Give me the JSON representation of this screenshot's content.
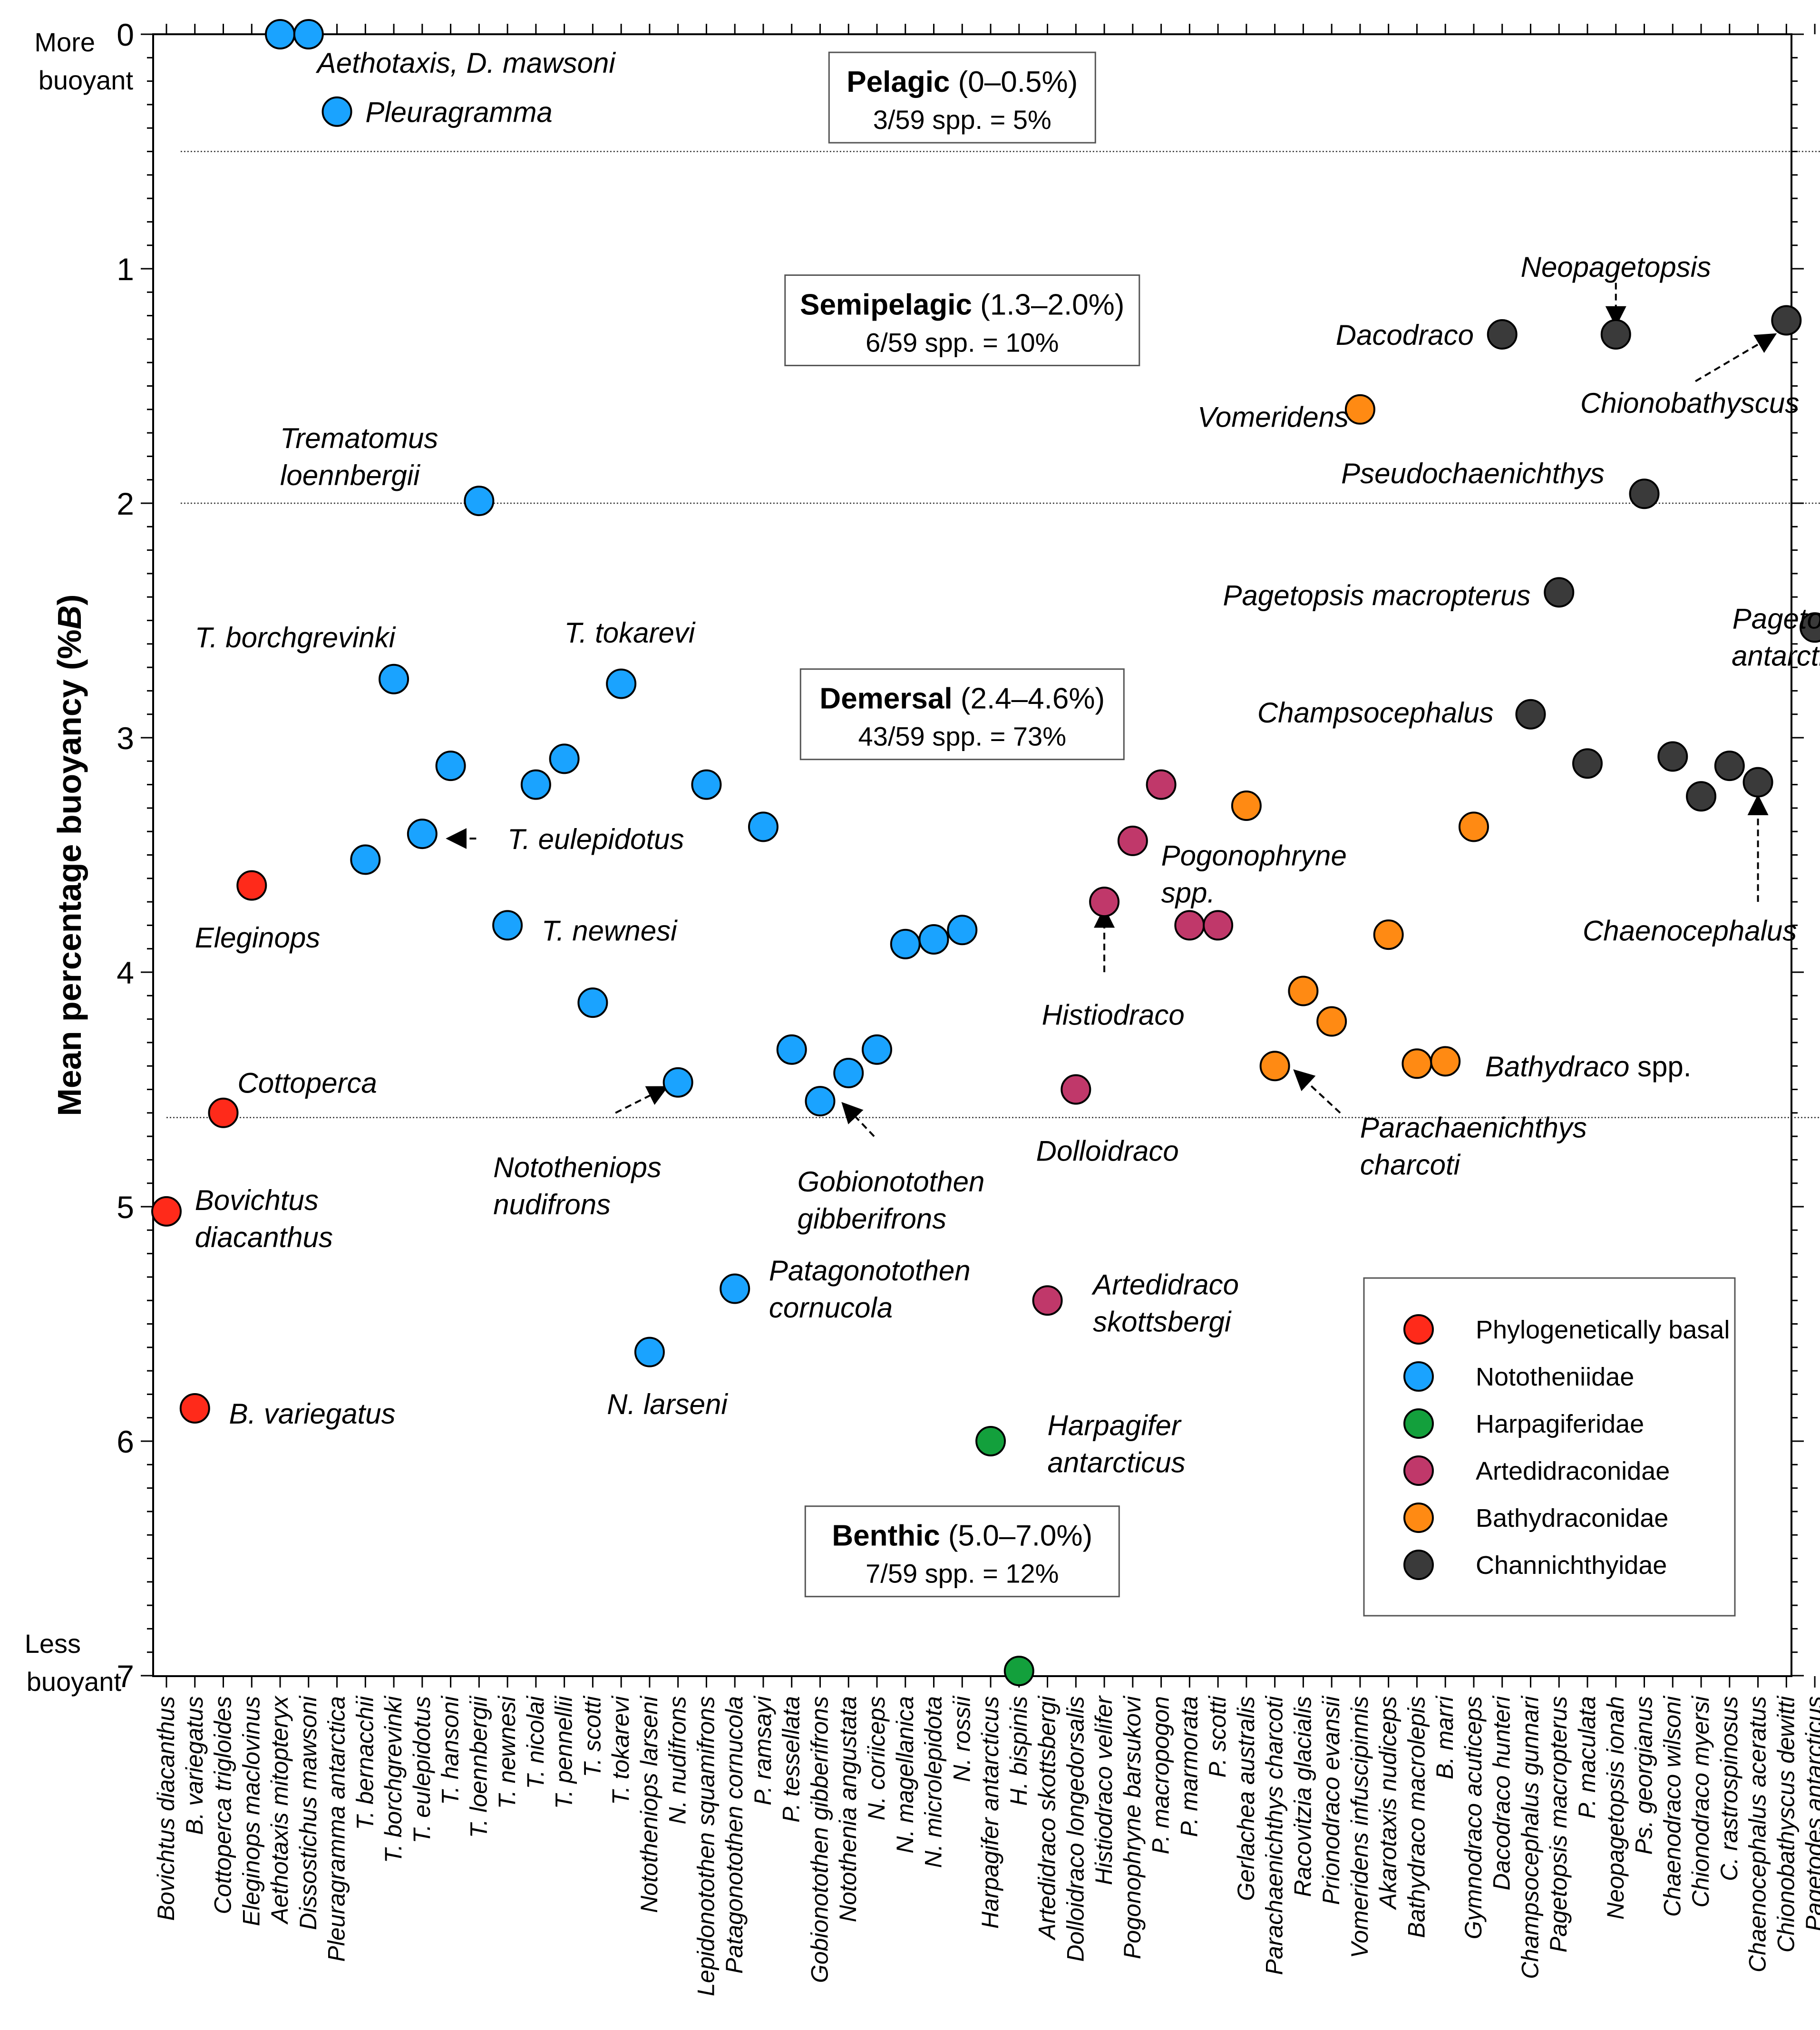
{
  "chart_data": {
    "type": "scatter",
    "title": "",
    "ylabel_main": "Mean percentage buoyancy (%",
    "ylabel_symbol": "B",
    "ylabel_end": ")",
    "y_top_label": [
      "More",
      "buoyant"
    ],
    "y_bottom_label": [
      "Less",
      "buoyant"
    ],
    "ylim": [
      0,
      7
    ],
    "y_inverted": true,
    "yticks": [
      0,
      1,
      2,
      3,
      4,
      5,
      6,
      7
    ],
    "grid": false,
    "categories": [
      "Bovichtus diacanthus",
      "B. variegatus",
      "Cottoperca trigloides",
      "Eleginops maclovinus",
      "Aethotaxis mitopteryx",
      "Dissostichus mawsoni",
      "Pleuragramma antarctica",
      "T. bernacchii",
      "T. borchgrevinki",
      "T. eulepidotus",
      "T. hansoni",
      "T. loennbergii",
      "T. newnesi",
      "T. nicolai",
      "T. pennellii",
      "T. scotti",
      "T. tokarevi",
      "Nototheniops larseni",
      "N. nudifrons",
      "Lepidonotothen squamifrons",
      "Patagonotothen cornucola",
      "P. ramsayi",
      "P. tessellata",
      "Gobionotothen gibberifrons",
      "Notothenia angustata",
      "N. coriiceps",
      "N. magellanica",
      "N. microlepidota",
      "N. rossii",
      "Harpagifer antarcticus",
      "H. bispinis",
      "Artedidraco skottsbergi",
      "Dolloidraco longedorsalis",
      "Histiodraco velifer",
      "Pogonophryne barsukovi",
      "P. macropogon",
      "P. marmorata",
      "P. scotti",
      "Gerlachea australis",
      "Parachaenichthys charcoti",
      "Racovitzia glacialis",
      "Prionodraco evansii",
      "Vomeridens infuscipinnis",
      "Akarotaxis nudiceps",
      "Bathydraco macrolepis",
      "B. marri",
      "Gymnodraco acuticeps",
      "Dacodraco hunteri",
      "Champsocephalus gunnari",
      "Pagetopsis macropterus",
      "P. maculata",
      "Neopagetopsis ionah",
      "Ps. georgianus",
      "Chaenodraco wilsoni",
      "Chionodraco myersi",
      "C. rastrospinosus",
      "Chaenocephalus aceratus",
      "Chionobathyscus dewitti",
      "Pagetodes antarcticus"
    ],
    "series": [
      {
        "name": "Phylogenetically basal",
        "color": "#ff2a1a",
        "points": [
          {
            "cat": 0,
            "y": 5.02
          },
          {
            "cat": 1,
            "y": 5.86
          },
          {
            "cat": 2,
            "y": 4.6
          },
          {
            "cat": 3,
            "y": 3.63
          }
        ]
      },
      {
        "name": "Nototheniidae",
        "color": "#1aa3ff",
        "points": [
          {
            "cat": 4,
            "y": 0
          },
          {
            "cat": 5,
            "y": 0
          },
          {
            "cat": 6,
            "y": 0.33
          },
          {
            "cat": 7,
            "y": 3.52
          },
          {
            "cat": 8,
            "y": 2.75
          },
          {
            "cat": 9,
            "y": 3.41
          },
          {
            "cat": 10,
            "y": 3.12
          },
          {
            "cat": 11,
            "y": 1.99
          },
          {
            "cat": 12,
            "y": 3.8
          },
          {
            "cat": 13,
            "y": 3.2
          },
          {
            "cat": 14,
            "y": 3.09
          },
          {
            "cat": 15,
            "y": 4.13
          },
          {
            "cat": 16,
            "y": 2.77
          },
          {
            "cat": 17,
            "y": 5.62
          },
          {
            "cat": 18,
            "y": 4.47
          },
          {
            "cat": 19,
            "y": 3.2
          },
          {
            "cat": 20,
            "y": 5.35
          },
          {
            "cat": 21,
            "y": 3.38
          },
          {
            "cat": 22,
            "y": 4.33
          },
          {
            "cat": 23,
            "y": 4.55
          },
          {
            "cat": 24,
            "y": 4.43
          },
          {
            "cat": 25,
            "y": 4.33
          },
          {
            "cat": 26,
            "y": 3.88
          },
          {
            "cat": 27,
            "y": 3.86
          },
          {
            "cat": 28,
            "y": 3.82
          }
        ]
      },
      {
        "name": "Harpagiferidae",
        "color": "#13a03c",
        "points": [
          {
            "cat": 29,
            "y": 6.0
          },
          {
            "cat": 30,
            "y": 6.98
          }
        ]
      },
      {
        "name": "Artedidraconidae",
        "color": "#c0386a",
        "points": [
          {
            "cat": 31,
            "y": 5.4
          },
          {
            "cat": 32,
            "y": 4.5
          },
          {
            "cat": 33,
            "y": 3.7
          },
          {
            "cat": 34,
            "y": 3.44
          },
          {
            "cat": 35,
            "y": 3.2
          },
          {
            "cat": 36,
            "y": 3.8
          },
          {
            "cat": 37,
            "y": 3.8
          }
        ]
      },
      {
        "name": "Bathydraconidae",
        "color": "#ff8a13",
        "points": [
          {
            "cat": 38,
            "y": 3.29
          },
          {
            "cat": 39,
            "y": 4.4
          },
          {
            "cat": 40,
            "y": 4.08
          },
          {
            "cat": 41,
            "y": 4.21
          },
          {
            "cat": 42,
            "y": 1.6
          },
          {
            "cat": 43,
            "y": 3.84
          },
          {
            "cat": 44,
            "y": 4.39
          },
          {
            "cat": 45,
            "y": 4.38
          },
          {
            "cat": 46,
            "y": 3.38
          }
        ]
      },
      {
        "name": "Channichthyidae",
        "color": "#3a3a3a",
        "points": [
          {
            "cat": 47,
            "y": 1.28
          },
          {
            "cat": 48,
            "y": 2.9
          },
          {
            "cat": 49,
            "y": 2.38
          },
          {
            "cat": 50,
            "y": 3.11
          },
          {
            "cat": 51,
            "y": 1.28
          },
          {
            "cat": 52,
            "y": 1.96
          },
          {
            "cat": 53,
            "y": 3.08
          },
          {
            "cat": 54,
            "y": 3.25
          },
          {
            "cat": 55,
            "y": 3.12
          },
          {
            "cat": 56,
            "y": 3.19
          },
          {
            "cat": 57,
            "y": 1.22
          },
          {
            "cat": 58,
            "y": 2.53
          }
        ]
      }
    ],
    "reference_lines": [
      {
        "y": 0.5,
        "from_cat": 0.5,
        "to_cat": 58.5
      },
      {
        "y": 2.0,
        "from_cat": 0.5,
        "to_cat": 58.5
      },
      {
        "y": 4.62,
        "from_cat": 0,
        "to_cat": 58.5
      }
    ],
    "zones": [
      {
        "name": "Pelagic",
        "range": " (0–0.5%)",
        "count": "3/59 spp. = 5%",
        "center_cat": 28,
        "y": 0.27
      },
      {
        "name": "Semipelagic",
        "range": " (1.3–2.0%)",
        "count": "6/59 spp. = 10%",
        "center_cat": 28,
        "y": 1.22
      },
      {
        "name": "Demersal",
        "range": " (2.4–4.6%)",
        "count": "43/59 spp. = 73%",
        "center_cat": 28,
        "y": 2.9
      },
      {
        "name": "Benthic",
        "range": " (5.0–7.0%)",
        "count": "7/59 spp. = 12%",
        "center_cat": 28,
        "y": 6.47
      }
    ],
    "annotations": [
      {
        "lines": [
          "Aethotaxis, D. mawsoni"
        ],
        "cat": 5.3,
        "y": 0.12,
        "anchor": "start"
      },
      {
        "lines": [
          "Pleuragramma"
        ],
        "cat": 7.0,
        "y": 0.33,
        "anchor": "start"
      },
      {
        "lines": [
          "Trematomus",
          "loennbergii"
        ],
        "cat": 4.0,
        "y": 1.72,
        "anchor": "start"
      },
      {
        "lines": [
          "T. borchgrevinki"
        ],
        "cat": 1.0,
        "y": 2.57,
        "anchor": "start"
      },
      {
        "lines": [
          "T. tokarevi"
        ],
        "cat": 14.0,
        "y": 2.55,
        "anchor": "start"
      },
      {
        "lines": [
          "T. eulepidotus"
        ],
        "cat": 12.0,
        "y": 3.43,
        "anchor": "start"
      },
      {
        "lines": [
          "T. newnesi"
        ],
        "cat": 13.2,
        "y": 3.82,
        "anchor": "start"
      },
      {
        "lines": [
          "Eleginops"
        ],
        "cat": 1.0,
        "y": 3.85,
        "anchor": "start"
      },
      {
        "lines": [
          "Cottoperca"
        ],
        "cat": 2.5,
        "y": 4.47,
        "anchor": "start"
      },
      {
        "lines": [
          "Bovichtus",
          "diacanthus"
        ],
        "cat": 1.0,
        "y": 4.97,
        "anchor": "start"
      },
      {
        "lines": [
          "B. variegatus"
        ],
        "cat": 2.2,
        "y": 5.88,
        "anchor": "start"
      },
      {
        "lines": [
          "Nototheniops",
          "nudifrons"
        ],
        "cat": 11.5,
        "y": 4.83,
        "anchor": "start"
      },
      {
        "lines": [
          "Gobionotothen",
          "gibberifrons"
        ],
        "cat": 22.2,
        "y": 4.89,
        "anchor": "start"
      },
      {
        "lines": [
          "Patagonotothen",
          "cornucola"
        ],
        "cat": 21.2,
        "y": 5.27,
        "anchor": "start"
      },
      {
        "lines": [
          "N. larseni"
        ],
        "cat": 15.5,
        "y": 5.84,
        "anchor": "start"
      },
      {
        "lines": [
          "Harpagifer",
          "antarcticus"
        ],
        "cat": 31.0,
        "y": 5.93,
        "anchor": "start"
      },
      {
        "lines": [
          "Artedidraco",
          "skottsbergi"
        ],
        "cat": 32.6,
        "y": 5.33,
        "anchor": "start"
      },
      {
        "lines": [
          "Dolloidraco"
        ],
        "cat": 30.6,
        "y": 4.76,
        "anchor": "start"
      },
      {
        "lines": [
          "Histiodraco"
        ],
        "cat": 30.8,
        "y": 4.18,
        "anchor": "start"
      },
      {
        "lines": [
          "Pogonophryne",
          "spp."
        ],
        "cat": 35.0,
        "y": 3.5,
        "anchor": "start"
      },
      {
        "lines": [
          "Parachaenichthys",
          "charcoti"
        ],
        "cat": 42.0,
        "y": 4.66,
        "anchor": "start"
      },
      {
        "lines": [
          "Bathydraco",
          "spp."
        ],
        "cat": 46.4,
        "y": 4.4,
        "anchor": "start",
        "mixed": true
      },
      {
        "lines": [
          "Vomeridens"
        ],
        "cat": 41.6,
        "y": 1.63,
        "anchor": "end"
      },
      {
        "lines": [
          "Dacodraco"
        ],
        "cat": 46.0,
        "y": 1.28,
        "anchor": "end"
      },
      {
        "lines": [
          "Neopagetopsis"
        ],
        "cat": 51.0,
        "y": 0.99,
        "anchor": "middle"
      },
      {
        "lines": [
          "Chionobathyscus"
        ],
        "cat": 53.6,
        "y": 1.57,
        "anchor": "middle"
      },
      {
        "lines": [
          "Pseudochaenichthys"
        ],
        "cat": 50.6,
        "y": 1.87,
        "anchor": "end"
      },
      {
        "lines": [
          "Pagetopsis macropterus"
        ],
        "cat": 48.0,
        "y": 2.39,
        "anchor": "end"
      },
      {
        "lines": [
          "Pagetodes",
          "antarcticus"
        ],
        "cat": 57.5,
        "y": 2.49,
        "anchor": "middle"
      },
      {
        "lines": [
          "Champsocephalus"
        ],
        "cat": 46.7,
        "y": 2.89,
        "anchor": "end"
      },
      {
        "lines": [
          "Chaenocephalus"
        ],
        "cat": 53.6,
        "y": 3.82,
        "anchor": "middle"
      }
    ],
    "arrows": [
      {
        "from": [
          10.9,
          3.43
        ],
        "to": [
          9.9,
          3.43
        ]
      },
      {
        "from": [
          15.8,
          4.6
        ],
        "to": [
          17.6,
          4.49
        ]
      },
      {
        "from": [
          24.9,
          4.7
        ],
        "to": [
          23.8,
          4.56
        ]
      },
      {
        "from": [
          33.0,
          4.0
        ],
        "to": [
          33.0,
          3.73
        ]
      },
      {
        "from": [
          41.3,
          4.6
        ],
        "to": [
          39.7,
          4.42
        ]
      },
      {
        "from": [
          51.0,
          1.06
        ],
        "to": [
          51.0,
          1.24
        ]
      },
      {
        "from": [
          53.8,
          1.48
        ],
        "to": [
          56.6,
          1.28
        ]
      },
      {
        "from": [
          56.0,
          3.7
        ],
        "to": [
          56.0,
          3.25
        ]
      }
    ]
  }
}
